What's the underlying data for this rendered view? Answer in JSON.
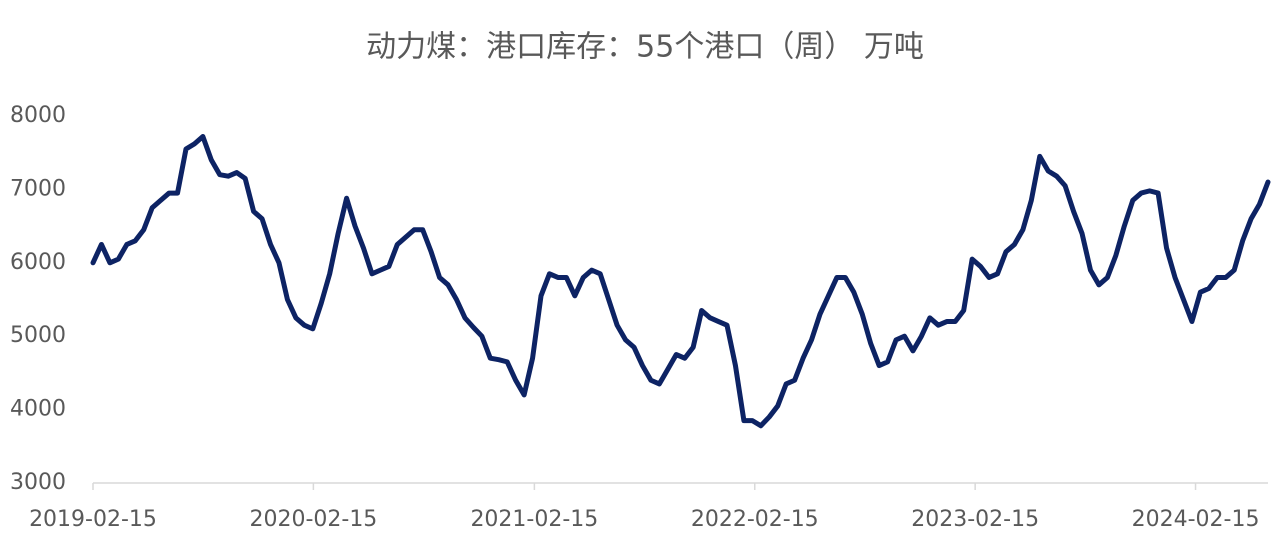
{
  "chart_data": {
    "type": "line",
    "title": "动力煤：港口库存：55个港口（周） 万吨",
    "x": [
      "2019-02-15",
      "2019-03-01",
      "2019-03-15",
      "2019-03-29",
      "2019-04-12",
      "2019-04-26",
      "2019-05-10",
      "2019-05-24",
      "2019-06-07",
      "2019-06-21",
      "2019-07-05",
      "2019-07-19",
      "2019-08-02",
      "2019-08-16",
      "2019-08-30",
      "2019-09-13",
      "2019-09-27",
      "2019-10-11",
      "2019-10-25",
      "2019-11-08",
      "2019-11-22",
      "2019-12-06",
      "2019-12-20",
      "2020-01-03",
      "2020-01-17",
      "2020-01-31",
      "2020-02-14",
      "2020-02-28",
      "2020-03-13",
      "2020-03-27",
      "2020-04-10",
      "2020-04-24",
      "2020-05-08",
      "2020-05-22",
      "2020-06-05",
      "2020-06-19",
      "2020-07-03",
      "2020-07-17",
      "2020-07-31",
      "2020-08-14",
      "2020-08-28",
      "2020-09-11",
      "2020-09-25",
      "2020-10-09",
      "2020-10-23",
      "2020-11-06",
      "2020-11-20",
      "2020-12-04",
      "2020-12-18",
      "2021-01-01",
      "2021-01-15",
      "2021-01-29",
      "2021-02-12",
      "2021-02-26",
      "2021-03-12",
      "2021-03-26",
      "2021-04-09",
      "2021-04-23",
      "2021-05-07",
      "2021-05-21",
      "2021-06-04",
      "2021-06-18",
      "2021-07-02",
      "2021-07-16",
      "2021-07-30",
      "2021-08-13",
      "2021-08-27",
      "2021-09-10",
      "2021-09-24",
      "2021-10-08",
      "2021-10-22",
      "2021-11-05",
      "2021-11-19",
      "2021-12-03",
      "2021-12-17",
      "2021-12-31",
      "2022-01-14",
      "2022-01-28",
      "2022-02-11",
      "2022-02-25",
      "2022-03-11",
      "2022-03-25",
      "2022-04-08",
      "2022-04-22",
      "2022-05-06",
      "2022-05-20",
      "2022-06-03",
      "2022-06-17",
      "2022-07-01",
      "2022-07-15",
      "2022-07-29",
      "2022-08-12",
      "2022-08-26",
      "2022-09-09",
      "2022-09-23",
      "2022-10-07",
      "2022-10-21",
      "2022-11-04",
      "2022-11-18",
      "2022-12-02",
      "2022-12-16",
      "2022-12-30",
      "2023-01-13",
      "2023-01-27",
      "2023-02-10",
      "2023-02-24",
      "2023-03-10",
      "2023-03-24",
      "2023-04-07",
      "2023-04-21",
      "2023-05-05",
      "2023-05-19",
      "2023-06-02",
      "2023-06-16",
      "2023-06-30",
      "2023-07-14",
      "2023-07-28",
      "2023-08-11",
      "2023-08-25",
      "2023-09-08",
      "2023-09-22",
      "2023-10-06",
      "2023-10-20",
      "2023-11-03",
      "2023-11-17",
      "2023-12-01",
      "2023-12-15",
      "2023-12-29",
      "2024-01-12",
      "2024-01-26",
      "2024-02-09",
      "2024-02-23",
      "2024-03-08",
      "2024-03-22",
      "2024-04-05",
      "2024-04-19",
      "2024-05-03",
      "2024-05-17",
      "2024-05-31",
      "2024-06-14"
    ],
    "series": [
      {
        "name": "动力煤：港口库存：55个港口",
        "color": "#0d2364",
        "values": [
          6000,
          6250,
          6000,
          6050,
          6250,
          6300,
          6450,
          6750,
          6850,
          6950,
          6950,
          7550,
          7620,
          7720,
          7400,
          7200,
          7180,
          7230,
          7150,
          6700,
          6600,
          6250,
          6000,
          5500,
          5250,
          5150,
          5100,
          5450,
          5850,
          6400,
          6880,
          6500,
          6200,
          5850,
          5900,
          5950,
          6250,
          6350,
          6450,
          6450,
          6150,
          5800,
          5700,
          5500,
          5250,
          5120,
          5000,
          4700,
          4680,
          4650,
          4400,
          4200,
          4700,
          5550,
          5850,
          5800,
          5800,
          5550,
          5800,
          5900,
          5850,
          5500,
          5150,
          4950,
          4850,
          4600,
          4400,
          4350,
          4550,
          4750,
          4700,
          4850,
          5350,
          5250,
          5200,
          5150,
          4600,
          3850,
          3850,
          3780,
          3900,
          4050,
          4350,
          4400,
          4700,
          4950,
          5300,
          5550,
          5800,
          5800,
          5600,
          5300,
          4900,
          4600,
          4650,
          4950,
          5000,
          4800,
          5000,
          5250,
          5150,
          5200,
          5200,
          5350,
          6050,
          5950,
          5800,
          5850,
          6150,
          6250,
          6450,
          6850,
          7450,
          7250,
          7180,
          7050,
          6700,
          6400,
          5900,
          5700,
          5800,
          6100,
          6500,
          6850,
          6950,
          6980,
          6950,
          6200,
          5800,
          5500,
          5200,
          5600,
          5650,
          5800,
          5800,
          5900,
          6300,
          6600,
          6800,
          7100
        ]
      }
    ],
    "xlim": [
      "2019-02-15",
      "2024-06-14"
    ],
    "xticks": [
      "2019-02-15",
      "2020-02-15",
      "2021-02-15",
      "2022-02-15",
      "2023-02-15",
      "2024-02-15"
    ],
    "ylim": [
      3000,
      8000
    ],
    "yticks": [
      3000,
      4000,
      5000,
      6000,
      7000,
      8000
    ]
  }
}
